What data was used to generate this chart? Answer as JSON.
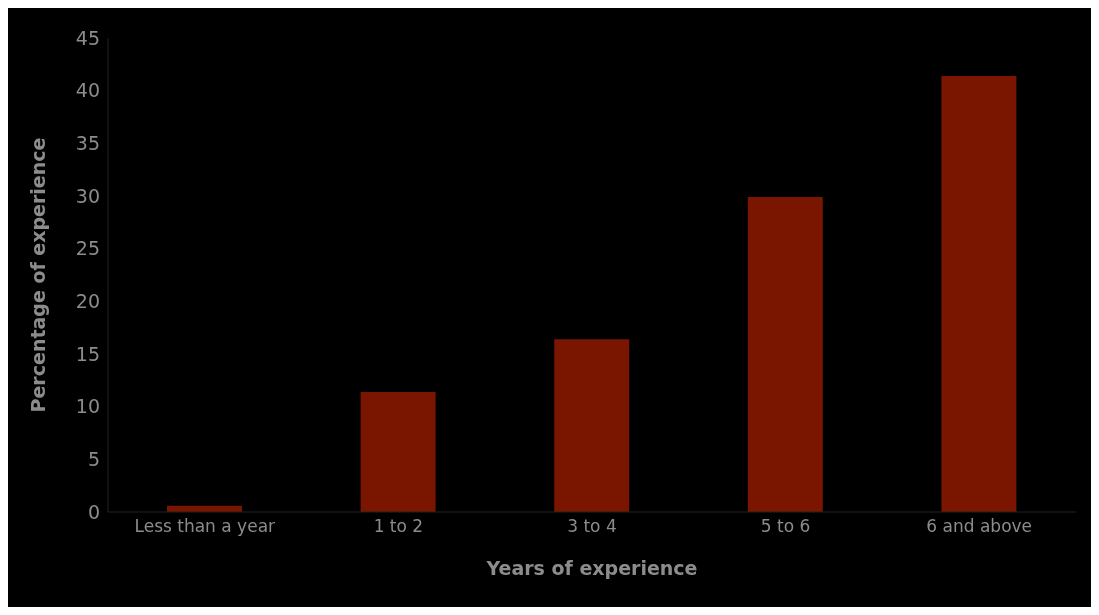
{
  "chart_data": {
    "type": "bar",
    "xlabel": "Years of experience",
    "ylabel": "Percentage of experience",
    "categories": [
      "Less than a year",
      "1 to 2",
      "3 to 4",
      "5 to 6",
      "6 and above"
    ],
    "values": [
      0.6,
      11.4,
      16.4,
      29.9,
      41.4
    ],
    "color": "#7a1500",
    "ylim": [
      0,
      45
    ],
    "yticks": [
      0,
      5,
      10,
      15,
      20,
      25,
      30,
      35,
      40,
      45
    ],
    "grid": false
  }
}
